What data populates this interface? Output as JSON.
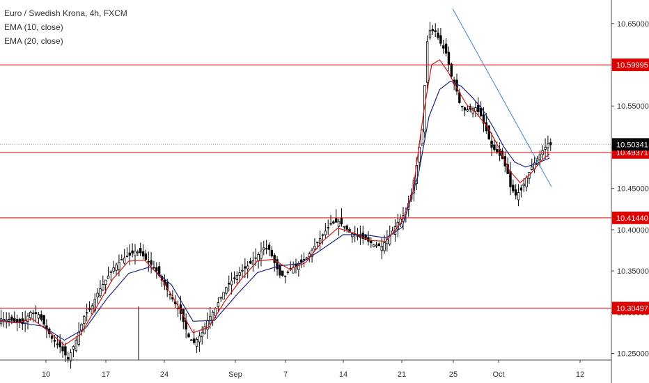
{
  "legend": {
    "title": "Euro / Swedish Krona, 4h, FXCM",
    "ema10": "EMA (10, close)",
    "ema20": "EMA (20, close)"
  },
  "colors": {
    "level": "#e00000",
    "ema10": "#d01818",
    "ema20": "#1a237e",
    "trendline": "#3d85c6",
    "candle": "#000000",
    "axis": "#444444",
    "price_tag": "#000000"
  },
  "chart_data": {
    "type": "candlestick",
    "title": "Euro / Swedish Krona, 4h, FXCM",
    "y_ticks": [
      "10.65000",
      "10.60000",
      "10.55000",
      "10.50000",
      "10.45000",
      "10.40000",
      "10.35000",
      "10.30000",
      "10.25000"
    ],
    "x_ticks": [
      "10",
      "17",
      "24",
      "Sep",
      "7",
      "14",
      "21",
      "25",
      "Oct",
      "12"
    ],
    "ylim": [
      10.242,
      10.676
    ],
    "horizontal_levels": [
      {
        "value": 10.59995,
        "label": "10.59995"
      },
      {
        "value": 10.49371,
        "label": "10.49371"
      },
      {
        "value": 10.4144,
        "label": "10.41440"
      },
      {
        "value": 10.30497,
        "label": "10.30497"
      }
    ],
    "last_price": {
      "value": 10.50341,
      "label": "10.50341"
    },
    "trendline": {
      "from": {
        "date": "Sep 24",
        "value": 10.668
      },
      "to": {
        "date": "Oct 10",
        "value": 10.452
      }
    },
    "close_path": [
      [
        0,
        10.292
      ],
      [
        4,
        10.29
      ],
      [
        8,
        10.286
      ],
      [
        11,
        10.3
      ],
      [
        14,
        10.297
      ],
      [
        19,
        10.268
      ],
      [
        22,
        10.258
      ],
      [
        25,
        10.243
      ],
      [
        28,
        10.266
      ],
      [
        31,
        10.295
      ],
      [
        34,
        10.308
      ],
      [
        36,
        10.323
      ],
      [
        39,
        10.339
      ],
      [
        42,
        10.354
      ],
      [
        45,
        10.364
      ],
      [
        48,
        10.369
      ],
      [
        50,
        10.374
      ],
      [
        52,
        10.372
      ],
      [
        54,
        10.364
      ],
      [
        56,
        10.358
      ],
      [
        58,
        10.35
      ],
      [
        61,
        10.333
      ],
      [
        64,
        10.316
      ],
      [
        67,
        10.298
      ],
      [
        70,
        10.27
      ],
      [
        72,
        10.263
      ],
      [
        75,
        10.275
      ],
      [
        77,
        10.29
      ],
      [
        80,
        10.305
      ],
      [
        82,
        10.318
      ],
      [
        84,
        10.33
      ],
      [
        86,
        10.338
      ],
      [
        89,
        10.348
      ],
      [
        92,
        10.356
      ],
      [
        95,
        10.366
      ],
      [
        98,
        10.378
      ],
      [
        100,
        10.376
      ],
      [
        102,
        10.36
      ],
      [
        104,
        10.345
      ],
      [
        106,
        10.344
      ],
      [
        108,
        10.352
      ],
      [
        111,
        10.358
      ],
      [
        114,
        10.366
      ],
      [
        117,
        10.38
      ],
      [
        120,
        10.394
      ],
      [
        123,
        10.407
      ],
      [
        126,
        10.41
      ],
      [
        128,
        10.404
      ],
      [
        130,
        10.397
      ],
      [
        133,
        10.392
      ],
      [
        136,
        10.388
      ],
      [
        139,
        10.382
      ],
      [
        142,
        10.38
      ],
      [
        145,
        10.393
      ],
      [
        148,
        10.409
      ],
      [
        151,
        10.421
      ],
      [
        153,
        10.442
      ],
      [
        155,
        10.478
      ],
      [
        157,
        10.522
      ],
      [
        158,
        10.575
      ],
      [
        159,
        10.628
      ],
      [
        160,
        10.642
      ],
      [
        162,
        10.64
      ],
      [
        164,
        10.626
      ],
      [
        166,
        10.614
      ],
      [
        168,
        10.586
      ],
      [
        170,
        10.568
      ],
      [
        171,
        10.554
      ],
      [
        173,
        10.545
      ],
      [
        175,
        10.546
      ],
      [
        177,
        10.548
      ],
      [
        179,
        10.538
      ],
      [
        181,
        10.52
      ],
      [
        183,
        10.5
      ],
      [
        185,
        10.494
      ],
      [
        187,
        10.486
      ],
      [
        189,
        10.468
      ],
      [
        190,
        10.452
      ],
      [
        192,
        10.442
      ],
      [
        194,
        10.448
      ],
      [
        196,
        10.463
      ],
      [
        198,
        10.476
      ],
      [
        200,
        10.486
      ],
      [
        202,
        10.496
      ],
      [
        204,
        10.504
      ],
      [
        205,
        10.503
      ]
    ],
    "ema10": [
      [
        0,
        10.289
      ],
      [
        6,
        10.287
      ],
      [
        12,
        10.292
      ],
      [
        18,
        10.277
      ],
      [
        24,
        10.26
      ],
      [
        30,
        10.273
      ],
      [
        36,
        10.306
      ],
      [
        42,
        10.34
      ],
      [
        48,
        10.362
      ],
      [
        54,
        10.363
      ],
      [
        60,
        10.342
      ],
      [
        66,
        10.31
      ],
      [
        72,
        10.275
      ],
      [
        78,
        10.282
      ],
      [
        84,
        10.314
      ],
      [
        90,
        10.34
      ],
      [
        96,
        10.362
      ],
      [
        102,
        10.364
      ],
      [
        108,
        10.352
      ],
      [
        114,
        10.36
      ],
      [
        120,
        10.385
      ],
      [
        126,
        10.402
      ],
      [
        132,
        10.396
      ],
      [
        138,
        10.387
      ],
      [
        144,
        10.386
      ],
      [
        150,
        10.41
      ],
      [
        154,
        10.446
      ],
      [
        158,
        10.542
      ],
      [
        161,
        10.6
      ],
      [
        164,
        10.606
      ],
      [
        167,
        10.592
      ],
      [
        170,
        10.574
      ],
      [
        174,
        10.552
      ],
      [
        178,
        10.54
      ],
      [
        182,
        10.524
      ],
      [
        186,
        10.5
      ],
      [
        190,
        10.472
      ],
      [
        194,
        10.457
      ],
      [
        198,
        10.468
      ],
      [
        202,
        10.484
      ],
      [
        205,
        10.492
      ]
    ],
    "ema20": [
      [
        0,
        10.29
      ],
      [
        8,
        10.287
      ],
      [
        16,
        10.283
      ],
      [
        24,
        10.266
      ],
      [
        32,
        10.281
      ],
      [
        40,
        10.317
      ],
      [
        48,
        10.347
      ],
      [
        56,
        10.355
      ],
      [
        64,
        10.333
      ],
      [
        72,
        10.289
      ],
      [
        80,
        10.29
      ],
      [
        88,
        10.32
      ],
      [
        96,
        10.348
      ],
      [
        104,
        10.356
      ],
      [
        112,
        10.359
      ],
      [
        120,
        10.376
      ],
      [
        128,
        10.394
      ],
      [
        136,
        10.394
      ],
      [
        144,
        10.39
      ],
      [
        150,
        10.403
      ],
      [
        156,
        10.466
      ],
      [
        160,
        10.537
      ],
      [
        164,
        10.57
      ],
      [
        168,
        10.58
      ],
      [
        172,
        10.574
      ],
      [
        176,
        10.561
      ],
      [
        180,
        10.546
      ],
      [
        184,
        10.524
      ],
      [
        188,
        10.5
      ],
      [
        192,
        10.482
      ],
      [
        196,
        10.476
      ],
      [
        200,
        10.48
      ],
      [
        205,
        10.487
      ]
    ]
  }
}
